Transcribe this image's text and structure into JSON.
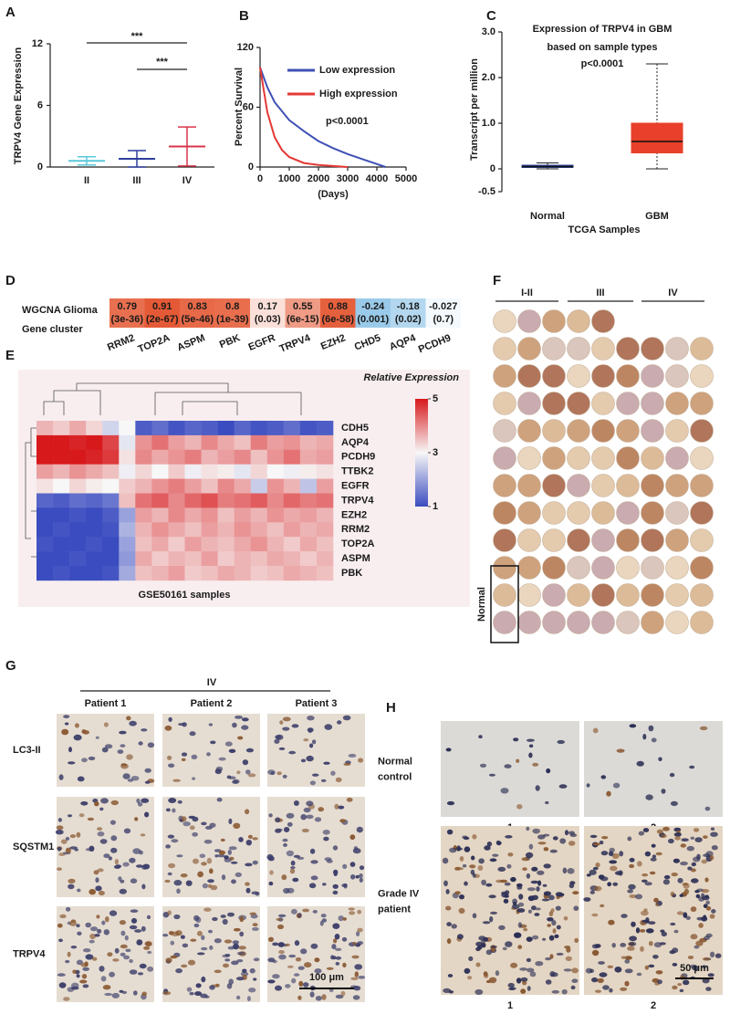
{
  "panel_labels": [
    "A",
    "B",
    "C",
    "D",
    "E",
    "F",
    "G",
    "H"
  ],
  "chart_data": [
    {
      "type": "dot",
      "ylabel": "TRPV4 Gene Expression",
      "categories": [
        "II",
        "III",
        "IV"
      ],
      "values": [
        0.6,
        0.8,
        2.0
      ],
      "errors": [
        0.4,
        0.8,
        1.9
      ],
      "colors": [
        "#5bc8d8",
        "#2e3f9e",
        "#d9344a"
      ],
      "ylim": [
        0,
        12
      ],
      "yticks": [
        0,
        6,
        12
      ],
      "annotations": [
        "***",
        "***"
      ]
    },
    {
      "type": "line",
      "xlabel": "(Days)",
      "ylabel": "Percent Survival",
      "xlim": [
        0,
        5000
      ],
      "xticks": [
        0,
        1000,
        2000,
        3000,
        4000,
        5000
      ],
      "ylim": [
        0,
        120
      ],
      "yticks": [
        0,
        60,
        120
      ],
      "series": [
        {
          "name": "Low expression",
          "color": "#3f51b5",
          "x": [
            0,
            250,
            500,
            1000,
            1500,
            2000,
            2500,
            3000,
            3500,
            4000,
            4300
          ],
          "values": [
            100,
            80,
            65,
            47,
            36,
            26,
            19,
            13,
            8,
            3,
            0
          ]
        },
        {
          "name": "High expression",
          "color": "#e53935",
          "x": [
            0,
            250,
            500,
            750,
            1000,
            1500,
            2000,
            2500,
            3000
          ],
          "values": [
            100,
            55,
            30,
            17,
            10,
            4,
            2,
            1,
            0
          ]
        }
      ],
      "annotation": "p<0.0001"
    },
    {
      "type": "box",
      "title": "Expression of TRPV4  in GBM",
      "subtitle": "based on  sample types",
      "annotation": "p<0.0001",
      "ylabel": "Transcript per million",
      "xlabel": "TCGA  Samples",
      "categories": [
        "Normal",
        "GBM"
      ],
      "colors": [
        "#2b3f8f",
        "#e8402a"
      ],
      "boxes": [
        {
          "min": 0.0,
          "q1": 0.03,
          "median": 0.05,
          "q3": 0.08,
          "max": 0.13
        },
        {
          "min": 0.0,
          "q1": 0.35,
          "median": 0.6,
          "q3": 1.0,
          "max": 2.3
        }
      ],
      "ylim": [
        -0.5,
        3.0
      ],
      "yticks": [
        -0.5,
        0,
        {
          "value": 1,
          "label": "1.0"
        },
        {
          "value": 2,
          "label": "2.0"
        },
        {
          "value": 3,
          "label": "3.0"
        }
      ]
    }
  ],
  "heatmap_d": {
    "row_labels": [
      "WGCNA Glioma",
      "Gene cluster"
    ],
    "genes": [
      "RRM2",
      "TOP2A",
      "ASPM",
      "PBK",
      "EGFR",
      "TRPV4",
      "EZH2",
      "CHD5",
      "AQP4",
      "PCDH9"
    ],
    "values": [
      0.79,
      0.91,
      0.83,
      0.8,
      0.17,
      0.55,
      0.88,
      -0.24,
      -0.18,
      -0.027
    ],
    "p_labels": [
      "(3e-36)",
      "(2e-67)",
      "(5e-46)",
      "(1e-39)",
      "(0.03)",
      "(6e-15)",
      "(6e-58)",
      "(0.001)",
      "(0.02)",
      "(0.7)"
    ]
  },
  "heatmap_e": {
    "title": "Relative Expression",
    "xlabel": "GSE50161 samples",
    "genes": [
      "CDH5",
      "AQP4",
      "PCDH9",
      "TTBK2",
      "EGFR",
      "TRPV4",
      "EZH2",
      "RRM2",
      "TOP2A",
      "ASPM",
      "PBK"
    ],
    "matrix": [
      [
        3.6,
        3.4,
        3.7,
        3.3,
        2.6,
        3.0,
        1.2,
        1.4,
        1.1,
        1.3,
        1.2,
        1.0,
        1.3,
        1.1,
        1.2,
        1.4,
        1.1,
        1.2
      ],
      [
        5,
        5,
        4.9,
        5,
        4.6,
        2.8,
        3.9,
        4.2,
        3.8,
        3.6,
        4.0,
        3.7,
        3.5,
        4.1,
        3.8,
        3.9,
        3.6,
        3.7
      ],
      [
        5,
        5,
        5,
        4.9,
        4.7,
        3.2,
        4.0,
        3.7,
        3.9,
        4.1,
        3.6,
        3.8,
        4.0,
        3.5,
        3.9,
        4.2,
        3.7,
        3.8
      ],
      [
        3.8,
        3.6,
        3.9,
        3.7,
        3.5,
        2.9,
        3.3,
        3.0,
        3.4,
        2.9,
        3.2,
        3.1,
        2.8,
        3.3,
        3.0,
        2.9,
        3.1,
        3.2
      ],
      [
        3.2,
        3.0,
        3.3,
        3.1,
        3.0,
        3.4,
        3.6,
        3.9,
        4.1,
        3.8,
        3.5,
        4.0,
        3.7,
        2.5,
        3.9,
        3.6,
        2.4,
        3.8
      ],
      [
        1.3,
        1.2,
        1.4,
        1.3,
        1.5,
        3.5,
        4.2,
        4.4,
        4.0,
        4.3,
        4.5,
        4.1,
        4.2,
        4.4,
        4.0,
        4.3,
        4.1,
        4.2
      ],
      [
        1,
        1,
        1.1,
        1,
        1.2,
        2.0,
        3.8,
        3.6,
        4.0,
        3.7,
        3.9,
        3.5,
        3.8,
        3.6,
        3.9,
        3.7,
        3.8,
        3.6
      ],
      [
        1,
        1.1,
        1,
        1,
        1.1,
        2.2,
        3.6,
        3.9,
        3.7,
        3.5,
        3.8,
        3.6,
        3.9,
        3.7,
        3.5,
        3.8,
        3.6,
        3.7
      ],
      [
        1.1,
        1,
        1,
        1.1,
        1,
        2.0,
        3.5,
        3.7,
        3.4,
        3.8,
        3.6,
        3.5,
        3.7,
        3.9,
        3.6,
        3.4,
        3.7,
        3.5
      ],
      [
        1,
        1,
        1.1,
        1,
        1,
        1.9,
        3.7,
        3.4,
        3.6,
        3.5,
        3.8,
        3.4,
        3.6,
        3.5,
        3.7,
        3.6,
        3.4,
        3.6
      ],
      [
        1,
        1.1,
        1,
        1,
        1.1,
        2.1,
        3.5,
        3.6,
        3.8,
        3.4,
        3.5,
        3.7,
        3.6,
        3.4,
        3.5,
        3.7,
        3.6,
        3.5
      ]
    ],
    "colorbar_ticks": [
      5,
      3,
      1
    ]
  },
  "tma": {
    "groups": [
      "I-II",
      "III",
      "IV"
    ],
    "normal_label": "Normal"
  },
  "ihc_g": {
    "group": "IV",
    "patients": [
      "Patient 1",
      "Patient 2",
      "Patient 3"
    ],
    "rows": [
      "LC3-II",
      "SQSTM1",
      "TRPV4"
    ],
    "scale_bar": "100 μm"
  },
  "ihc_h": {
    "rows": [
      [
        "Normal",
        "control"
      ],
      [
        "Grade IV",
        "patient"
      ]
    ],
    "image_labels": [
      [
        "1",
        "2"
      ],
      [
        "1",
        "2"
      ]
    ],
    "scale_bar": "50 μm"
  }
}
